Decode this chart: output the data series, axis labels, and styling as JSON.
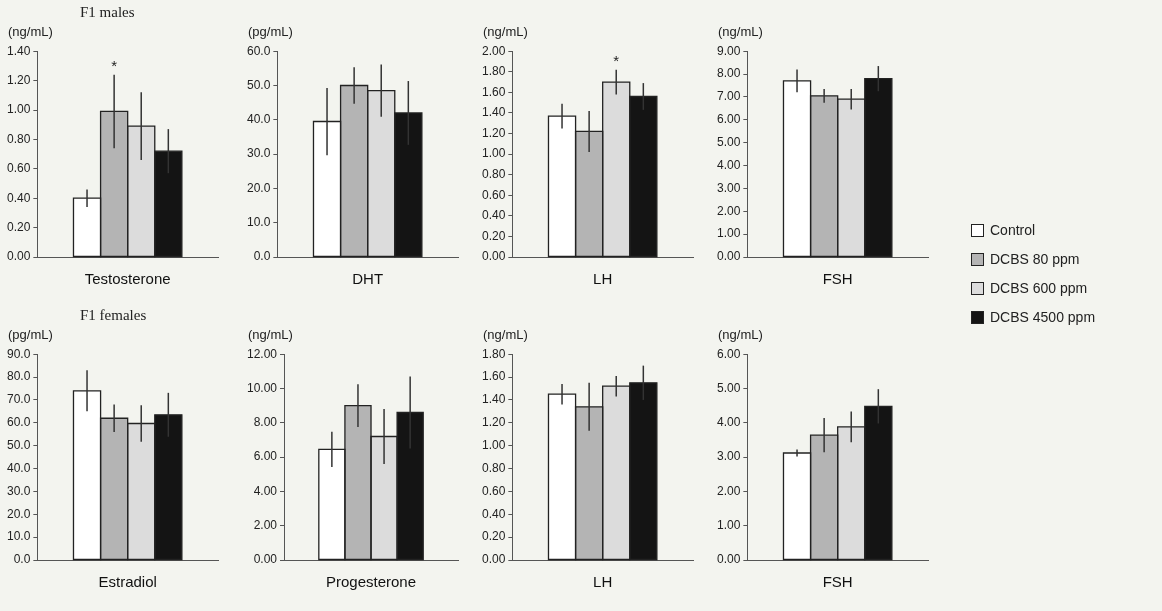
{
  "chart_data": [
    {
      "type": "bar",
      "title": "F1 males",
      "ylabel": "(ng/mL)",
      "categories": [
        "Testosterone"
      ],
      "ylim": [
        0,
        1.4
      ],
      "yticks": [
        {
          "value": 0,
          "label": "0.00"
        },
        {
          "value": 0.2,
          "label": "0.20"
        },
        {
          "value": 0.4,
          "label": "0.40"
        },
        {
          "value": 0.6,
          "label": "0.60"
        },
        {
          "value": 0.8,
          "label": "0.80"
        },
        {
          "value": 1,
          "label": "1.00"
        },
        {
          "value": 1.2,
          "label": "1.20"
        },
        {
          "value": 1.4,
          "label": "1.40"
        }
      ],
      "series": [
        {
          "color": "#ffffff",
          "values": [
            0.4
          ],
          "errors": [
            0.06
          ]
        },
        {
          "color": "#b4b4b4",
          "values": [
            0.99
          ],
          "errors": [
            0.25
          ]
        },
        {
          "color": "#dcdcdc",
          "values": [
            0.89
          ],
          "errors": [
            0.23
          ]
        },
        {
          "color": "#141414",
          "values": [
            0.72
          ],
          "errors": [
            0.15
          ]
        }
      ],
      "annotations": [
        "*"
      ]
    },
    {
      "type": "bar",
      "ylabel": "(pg/mL)",
      "categories": [
        "DHT"
      ],
      "ylim": [
        0,
        60
      ],
      "yticks": [
        {
          "value": 0,
          "label": "0.0"
        },
        {
          "value": 10,
          "label": "10.0"
        },
        {
          "value": 20,
          "label": "20.0"
        },
        {
          "value": 30,
          "label": "30.0"
        },
        {
          "value": 40,
          "label": "40.0"
        },
        {
          "value": 50,
          "label": "50.0"
        },
        {
          "value": 60,
          "label": "60.0"
        }
      ],
      "series": [
        {
          "color": "#ffffff",
          "values": [
            39.5
          ],
          "errors": [
            9.8
          ]
        },
        {
          "color": "#b4b4b4",
          "values": [
            50
          ],
          "errors": [
            5.3
          ]
        },
        {
          "color": "#dcdcdc",
          "values": [
            48.5
          ],
          "errors": [
            7.6
          ]
        },
        {
          "color": "#141414",
          "values": [
            42
          ],
          "errors": [
            9.3
          ]
        }
      ]
    },
    {
      "type": "bar",
      "ylabel": "(ng/mL)",
      "categories": [
        "LH"
      ],
      "ylim": [
        0,
        2
      ],
      "yticks": [
        {
          "value": 0,
          "label": "0.00"
        },
        {
          "value": 0.2,
          "label": "0.20"
        },
        {
          "value": 0.4,
          "label": "0.40"
        },
        {
          "value": 0.6,
          "label": "0.60"
        },
        {
          "value": 0.8,
          "label": "0.80"
        },
        {
          "value": 1,
          "label": "1.00"
        },
        {
          "value": 1.2,
          "label": "1.20"
        },
        {
          "value": 1.4,
          "label": "1.40"
        },
        {
          "value": 1.6,
          "label": "1.60"
        },
        {
          "value": 1.8,
          "label": "1.80"
        },
        {
          "value": 2,
          "label": "2.00"
        }
      ],
      "series": [
        {
          "color": "#ffffff",
          "values": [
            1.37
          ],
          "errors": [
            0.12
          ]
        },
        {
          "color": "#b4b4b4",
          "values": [
            1.22
          ],
          "errors": [
            0.2
          ]
        },
        {
          "color": "#dcdcdc",
          "values": [
            1.7
          ],
          "errors": [
            0.12
          ]
        },
        {
          "color": "#141414",
          "values": [
            1.56
          ],
          "errors": [
            0.13
          ]
        }
      ],
      "annotations": [
        "*"
      ]
    },
    {
      "type": "bar",
      "ylabel": "(ng/mL)",
      "categories": [
        "FSH"
      ],
      "ylim": [
        0,
        9
      ],
      "yticks": [
        {
          "value": 0,
          "label": "0.00"
        },
        {
          "value": 1,
          "label": "1.00"
        },
        {
          "value": 2,
          "label": "2.00"
        },
        {
          "value": 3,
          "label": "3.00"
        },
        {
          "value": 4,
          "label": "4.00"
        },
        {
          "value": 5,
          "label": "5.00"
        },
        {
          "value": 6,
          "label": "6.00"
        },
        {
          "value": 7,
          "label": "7.00"
        },
        {
          "value": 8,
          "label": "8.00"
        },
        {
          "value": 9,
          "label": "9.00"
        }
      ],
      "legend": "right",
      "series": [
        {
          "name": "Control",
          "color": "#ffffff",
          "values": [
            7.7
          ],
          "errors": [
            0.5
          ]
        },
        {
          "name": "DCBS 80 ppm",
          "color": "#b4b4b4",
          "values": [
            7.05
          ],
          "errors": [
            0.3
          ]
        },
        {
          "name": "DCBS 600 ppm",
          "color": "#dcdcdc",
          "values": [
            6.9
          ],
          "errors": [
            0.45
          ]
        },
        {
          "name": "DCBS 4500 ppm",
          "color": "#141414",
          "values": [
            7.8
          ],
          "errors": [
            0.55
          ]
        }
      ]
    },
    {
      "type": "bar",
      "title": "F1 females",
      "ylabel": "(pg/mL)",
      "categories": [
        "Estradiol"
      ],
      "ylim": [
        0,
        90
      ],
      "yticks": [
        {
          "value": 0,
          "label": "0.0"
        },
        {
          "value": 10,
          "label": "10.0"
        },
        {
          "value": 20,
          "label": "20.0"
        },
        {
          "value": 30,
          "label": "30.0"
        },
        {
          "value": 40,
          "label": "40.0"
        },
        {
          "value": 50,
          "label": "50.0"
        },
        {
          "value": 60,
          "label": "60.0"
        },
        {
          "value": 70,
          "label": "70.0"
        },
        {
          "value": 80,
          "label": "80.0"
        },
        {
          "value": 90,
          "label": "90.0"
        }
      ],
      "series": [
        {
          "color": "#ffffff",
          "values": [
            74
          ],
          "errors": [
            9
          ]
        },
        {
          "color": "#b4b4b4",
          "values": [
            62
          ],
          "errors": [
            6
          ]
        },
        {
          "color": "#dcdcdc",
          "values": [
            59.7
          ],
          "errors": [
            8
          ]
        },
        {
          "color": "#141414",
          "values": [
            63.5
          ],
          "errors": [
            9.6
          ]
        }
      ]
    },
    {
      "type": "bar",
      "ylabel": "(ng/mL)",
      "categories": [
        "Progesterone"
      ],
      "ylim": [
        0,
        12
      ],
      "yticks": [
        {
          "value": 0,
          "label": "0.00"
        },
        {
          "value": 2,
          "label": "2.00"
        },
        {
          "value": 4,
          "label": "4.00"
        },
        {
          "value": 6,
          "label": "6.00"
        },
        {
          "value": 8,
          "label": "8.00"
        },
        {
          "value": 10,
          "label": "10.00"
        },
        {
          "value": 12,
          "label": "12.00"
        }
      ],
      "series": [
        {
          "color": "#ffffff",
          "values": [
            6.45
          ],
          "errors": [
            1.03
          ]
        },
        {
          "color": "#b4b4b4",
          "values": [
            9.0
          ],
          "errors": [
            1.25
          ]
        },
        {
          "color": "#dcdcdc",
          "values": [
            7.2
          ],
          "errors": [
            1.6
          ]
        },
        {
          "color": "#141414",
          "values": [
            8.6
          ],
          "errors": [
            2.1
          ]
        }
      ]
    },
    {
      "type": "bar",
      "ylabel": "(ng/mL)",
      "categories": [
        "LH"
      ],
      "ylim": [
        0,
        1.8
      ],
      "yticks": [
        {
          "value": 0,
          "label": "0.00"
        },
        {
          "value": 0.2,
          "label": "0.20"
        },
        {
          "value": 0.4,
          "label": "0.40"
        },
        {
          "value": 0.6,
          "label": "0.60"
        },
        {
          "value": 0.8,
          "label": "0.80"
        },
        {
          "value": 1,
          "label": "1.00"
        },
        {
          "value": 1.2,
          "label": "1.20"
        },
        {
          "value": 1.4,
          "label": "1.40"
        },
        {
          "value": 1.6,
          "label": "1.60"
        },
        {
          "value": 1.8,
          "label": "1.80"
        }
      ],
      "series": [
        {
          "color": "#ffffff",
          "values": [
            1.45
          ],
          "errors": [
            0.09
          ]
        },
        {
          "color": "#b4b4b4",
          "values": [
            1.34
          ],
          "errors": [
            0.21
          ]
        },
        {
          "color": "#dcdcdc",
          "values": [
            1.52
          ],
          "errors": [
            0.09
          ]
        },
        {
          "color": "#141414",
          "values": [
            1.55
          ],
          "errors": [
            0.15
          ]
        }
      ]
    },
    {
      "type": "bar",
      "ylabel": "(ng/mL)",
      "categories": [
        "FSH"
      ],
      "ylim": [
        0,
        6
      ],
      "yticks": [
        {
          "value": 0,
          "label": "0.00"
        },
        {
          "value": 1,
          "label": "1.00"
        },
        {
          "value": 2,
          "label": "2.00"
        },
        {
          "value": 3,
          "label": "3.00"
        },
        {
          "value": 4,
          "label": "4.00"
        },
        {
          "value": 5,
          "label": "5.00"
        },
        {
          "value": 6,
          "label": "6.00"
        }
      ],
      "series": [
        {
          "color": "#ffffff",
          "values": [
            3.12
          ],
          "errors": [
            0.1
          ]
        },
        {
          "color": "#b4b4b4",
          "values": [
            3.64
          ],
          "errors": [
            0.5
          ]
        },
        {
          "color": "#dcdcdc",
          "values": [
            3.88
          ],
          "errors": [
            0.45
          ]
        },
        {
          "color": "#141414",
          "values": [
            4.48
          ],
          "errors": [
            0.5
          ]
        }
      ]
    }
  ]
}
